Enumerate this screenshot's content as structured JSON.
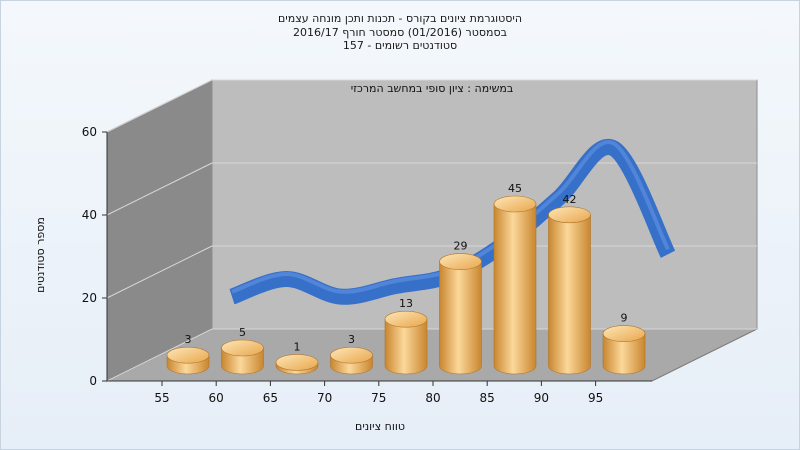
{
  "titles": {
    "line1": "היסטוגרמת ציונים בקורס - תכנות ותכן מונחה עצמים",
    "line2": "בסמסטר  (01/2016)  סמסטר חורף 2016/17",
    "line3": "סטודנטים רשומים - 157",
    "task": "במשימה : ציון סופי במחשב המרכזי"
  },
  "colors": {
    "bar_light": "#fbd89a",
    "bar_dark": "#c9862f",
    "curve": "#2f6cc8",
    "back_wall": "#bdbdbd",
    "side_wall": "#8a8a8a",
    "floor": "#a9a9a9"
  },
  "chart_data": {
    "type": "bar",
    "categories": [
      "55",
      "60",
      "65",
      "70",
      "75",
      "80",
      "85",
      "90",
      "95"
    ],
    "values": [
      3,
      5,
      1,
      3,
      13,
      29,
      45,
      42,
      9
    ],
    "x_ticks": [
      "55",
      "60",
      "65",
      "70",
      "75",
      "80",
      "85",
      "90",
      "95"
    ],
    "y_ticks": [
      0,
      20,
      40,
      60
    ],
    "ylim": [
      0,
      60
    ],
    "xlabel": "טווח ציונים",
    "ylabel": "מספר סטודנטים",
    "grid": true,
    "curve_values": [
      10,
      15,
      10,
      13,
      16,
      25,
      38,
      52,
      22
    ]
  }
}
